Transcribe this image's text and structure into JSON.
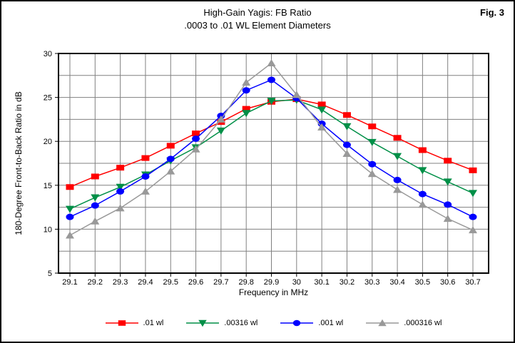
{
  "figure": {
    "label": "Fig. 3"
  },
  "chart_data": {
    "type": "line",
    "title": "High-Gain Yagis: FB Ratio",
    "subtitle": ".0003 to .01 WL Element Diameters",
    "xlabel": "Frequency in MHz",
    "ylabel": "180-Degree Front-to-Back Ratio in dB",
    "x": [
      29.1,
      29.2,
      29.3,
      29.4,
      29.5,
      29.6,
      29.7,
      29.8,
      29.9,
      30,
      30.1,
      30.2,
      30.3,
      30.4,
      30.5,
      30.6,
      30.7
    ],
    "xlim": [
      29.055,
      30.76
    ],
    "ylim": [
      5,
      30
    ],
    "y_ticks": [
      5,
      10,
      15,
      20,
      25,
      30
    ],
    "y_grid_step": 2.5,
    "grid": true,
    "legend_position": "bottom",
    "colors": {
      "grid": "#808080",
      "axis": "#000000",
      "background": "#ffffff"
    },
    "series": [
      {
        "label": ".01 wl",
        "color": "#ff0000",
        "marker": "square",
        "values": [
          14.8,
          16.0,
          17.0,
          18.1,
          19.5,
          20.9,
          22.2,
          23.7,
          24.5,
          24.8,
          24.2,
          23.0,
          21.7,
          20.4,
          19.0,
          17.8,
          16.7
        ]
      },
      {
        "label": ".00316 wl",
        "color": "#008f47",
        "marker": "triangle-down",
        "values": [
          12.3,
          13.6,
          14.8,
          16.2,
          17.8,
          19.3,
          21.2,
          23.2,
          24.6,
          24.7,
          23.6,
          21.7,
          19.9,
          18.3,
          16.7,
          15.4,
          14.1
        ]
      },
      {
        "label": ".001 wl",
        "color": "#0000ff",
        "marker": "circle",
        "values": [
          11.4,
          12.7,
          14.3,
          16.0,
          18.0,
          20.3,
          22.9,
          25.8,
          27.0,
          24.9,
          22.0,
          19.6,
          17.4,
          15.6,
          14.0,
          12.8,
          11.4
        ]
      },
      {
        "label": ".000316 wl",
        "color": "#999999",
        "marker": "triangle-up",
        "values": [
          9.3,
          10.9,
          12.4,
          14.3,
          16.6,
          19.1,
          22.5,
          26.7,
          28.9,
          25.3,
          21.6,
          18.6,
          16.3,
          14.5,
          12.8,
          11.2,
          9.9
        ]
      }
    ]
  }
}
